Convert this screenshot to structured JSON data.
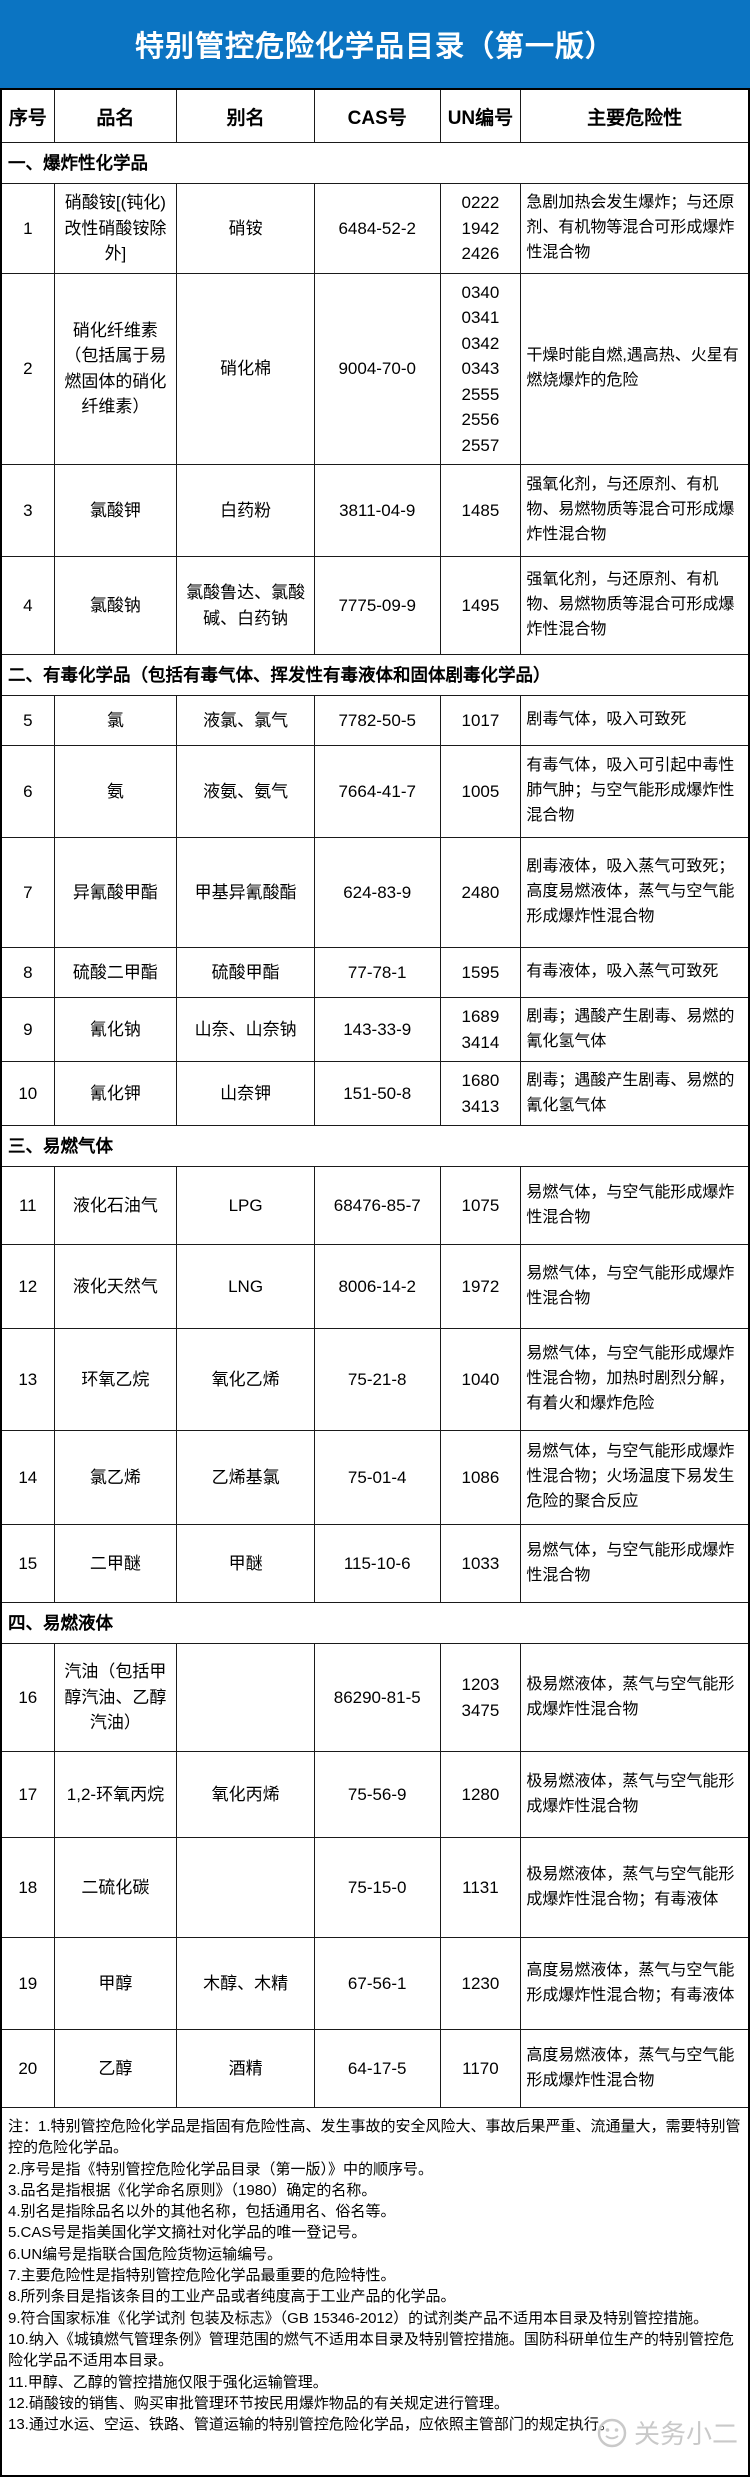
{
  "title": "特别管控危险化学品目录（第一版）",
  "colors": {
    "title_bg": "#0b74c2",
    "title_text": "#ffffff",
    "border": "#1a1a1a",
    "watermark": "#c9c9c9"
  },
  "table": {
    "headers": [
      "序号",
      "品名",
      "别名",
      "CAS号",
      "UN编号",
      "主要危险性"
    ],
    "sections": [
      {
        "label": "一、爆炸性化学品",
        "rows": [
          {
            "no": "1",
            "name": "硝酸铵[(钝化)改性硝酸铵除外]",
            "alias": "硝铵",
            "cas": "6484-52-2",
            "un": [
              "0222",
              "1942",
              "2426"
            ],
            "hazard": "急剧加热会发生爆炸；与还原剂、有机物等混合可形成爆炸性混合物"
          },
          {
            "no": "2",
            "name": "硝化纤维素（包括属于易燃固体的硝化纤维素）",
            "alias": "硝化棉",
            "cas": "9004-70-0",
            "un": [
              "0340",
              "0341",
              "0342",
              "0343",
              "2555",
              "2556",
              "2557"
            ],
            "hazard": "干燥时能自燃,遇高热、火星有燃烧爆炸的危险"
          },
          {
            "no": "3",
            "name": "氯酸钾",
            "alias": "白药粉",
            "cas": "3811-04-9",
            "un": [
              "1485"
            ],
            "hazard": "强氧化剂，与还原剂、有机物、易燃物质等混合可形成爆炸性混合物"
          },
          {
            "no": "4",
            "name": "氯酸钠",
            "alias": "氯酸鲁达、氯酸碱、白药钠",
            "cas": "7775-09-9",
            "un": [
              "1495"
            ],
            "hazard": "强氧化剂，与还原剂、有机物、易燃物质等混合可形成爆炸性混合物"
          }
        ]
      },
      {
        "label": "二、有毒化学品（包括有毒气体、挥发性有毒液体和固体剧毒化学品）",
        "rows": [
          {
            "no": "5",
            "name": "氯",
            "alias": "液氯、氯气",
            "cas": "7782-50-5",
            "un": [
              "1017"
            ],
            "hazard": "剧毒气体，吸入可致死"
          },
          {
            "no": "6",
            "name": "氨",
            "alias": "液氨、氨气",
            "cas": "7664-41-7",
            "un": [
              "1005"
            ],
            "hazard": "有毒气体，吸入可引起中毒性肺气肿；与空气能形成爆炸性混合物"
          },
          {
            "no": "7",
            "name": "异氰酸甲酯",
            "alias": "甲基异氰酸酯",
            "cas": "624-83-9",
            "un": [
              "2480"
            ],
            "hazard": "剧毒液体，吸入蒸气可致死；高度易燃液体，蒸气与空气能形成爆炸性混合物"
          },
          {
            "no": "8",
            "name": "硫酸二甲酯",
            "alias": "硫酸甲酯",
            "cas": "77-78-1",
            "un": [
              "1595"
            ],
            "hazard": "有毒液体，吸入蒸气可致死"
          },
          {
            "no": "9",
            "name": "氰化钠",
            "alias": "山奈、山奈钠",
            "cas": "143-33-9",
            "un": [
              "1689",
              "3414"
            ],
            "hazard": "剧毒；遇酸产生剧毒、易燃的氰化氢气体"
          },
          {
            "no": "10",
            "name": "氰化钾",
            "alias": "山奈钾",
            "cas": "151-50-8",
            "un": [
              "1680",
              "3413"
            ],
            "hazard": "剧毒；遇酸产生剧毒、易燃的氰化氢气体"
          }
        ]
      },
      {
        "label": "三、易燃气体",
        "rows": [
          {
            "no": "11",
            "name": "液化石油气",
            "alias": "LPG",
            "cas": "68476-85-7",
            "un": [
              "1075"
            ],
            "hazard": "易燃气体，与空气能形成爆炸性混合物"
          },
          {
            "no": "12",
            "name": "液化天然气",
            "alias": "LNG",
            "cas": "8006-14-2",
            "un": [
              "1972"
            ],
            "hazard": "易燃气体，与空气能形成爆炸性混合物"
          },
          {
            "no": "13",
            "name": "环氧乙烷",
            "alias": "氧化乙烯",
            "cas": "75-21-8",
            "un": [
              "1040"
            ],
            "hazard": "易燃气体，与空气能形成爆炸性混合物，加热时剧烈分解，有着火和爆炸危险"
          },
          {
            "no": "14",
            "name": "氯乙烯",
            "alias": "乙烯基氯",
            "cas": "75-01-4",
            "un": [
              "1086"
            ],
            "hazard": "易燃气体，与空气能形成爆炸性混合物；火场温度下易发生危险的聚合反应"
          },
          {
            "no": "15",
            "name": "二甲醚",
            "alias": "甲醚",
            "cas": "115-10-6",
            "un": [
              "1033"
            ],
            "hazard": "易燃气体，与空气能形成爆炸性混合物"
          }
        ]
      },
      {
        "label": "四、易燃液体",
        "rows": [
          {
            "no": "16",
            "name": "汽油（包括甲醇汽油、乙醇汽油）",
            "alias": "",
            "cas": "86290-81-5",
            "un": [
              "1203",
              "3475"
            ],
            "hazard": "极易燃液体，蒸气与空气能形成爆炸性混合物"
          },
          {
            "no": "17",
            "name": "1,2-环氧丙烷",
            "alias": "氧化丙烯",
            "cas": "75-56-9",
            "un": [
              "1280"
            ],
            "hazard": "极易燃液体，蒸气与空气能形成爆炸性混合物"
          },
          {
            "no": "18",
            "name": "二硫化碳",
            "alias": "",
            "cas": "75-15-0",
            "un": [
              "1131"
            ],
            "hazard": "极易燃液体，蒸气与空气能形成爆炸性混合物；有毒液体"
          },
          {
            "no": "19",
            "name": "甲醇",
            "alias": "木醇、木精",
            "cas": "67-56-1",
            "un": [
              "1230"
            ],
            "hazard": "高度易燃液体，蒸气与空气能形成爆炸性混合物；有毒液体"
          },
          {
            "no": "20",
            "name": "乙醇",
            "alias": "酒精",
            "cas": "64-17-5",
            "un": [
              "1170"
            ],
            "hazard": "高度易燃液体，蒸气与空气能形成爆炸性混合物"
          }
        ]
      }
    ]
  },
  "notes": [
    "注：1.特别管控危险化学品是指固有危险性高、发生事故的安全风险大、事故后果严重、流通量大，需要特别管控的危险化学品。",
    "2.序号是指《特别管控危险化学品目录（第一版）》中的顺序号。",
    "3.品名是指根据《化学命名原则》（1980）确定的名称。",
    "4.别名是指除品名以外的其他名称，包括通用名、俗名等。",
    "5.CAS号是指美国化学文摘社对化学品的唯一登记号。",
    "6.UN编号是指联合国危险货物运输编号。",
    "7.主要危险性是指特别管控危险化学品最重要的危险特性。",
    "8.所列条目是指该条目的工业产品或者纯度高于工业产品的化学品。",
    "9.符合国家标准《化学试剂 包装及标志》（GB 15346-2012）的试剂类产品不适用本目录及特别管控措施。",
    "10.纳入《城镇燃气管理条例》管理范围的燃气不适用本目录及特别管控措施。国防科研单位生产的特别管控危险化学品不适用本目录。",
    "11.甲醇、乙醇的管控措施仅限于强化运输管理。",
    "12.硝酸铵的销售、购买审批管理环节按民用爆炸物品的有关规定进行管理。",
    "13.通过水运、空运、铁路、管道运输的特别管控危险化学品，应依照主管部门的规定执行。"
  ],
  "watermark": {
    "label": "关务小二",
    "logo": "wechat-face-logo"
  }
}
